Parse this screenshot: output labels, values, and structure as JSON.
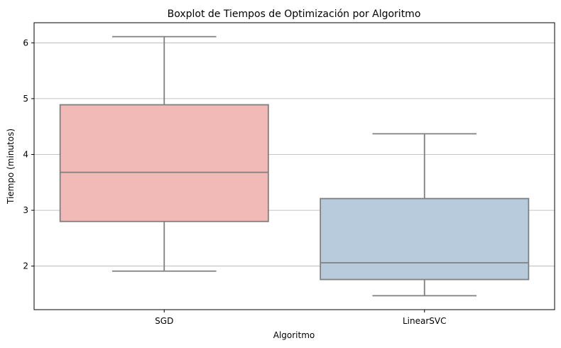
{
  "chart_data": {
    "type": "box",
    "title": "Boxplot de Tiempos de Optimización por Algoritmo",
    "xlabel": "Algoritmo",
    "ylabel": "Tiempo (minutos)",
    "categories": [
      "SGD",
      "LinearSVC"
    ],
    "yticks": [
      2,
      3,
      4,
      5,
      6
    ],
    "ylim": [
      1.22,
      6.36
    ],
    "grid": "y",
    "boxes": [
      {
        "category": "SGD",
        "whisker_low": 1.91,
        "q1": 2.8,
        "median": 3.68,
        "q3": 4.89,
        "whisker_high": 6.11,
        "color": "#f1bab7"
      },
      {
        "category": "LinearSVC",
        "whisker_low": 1.47,
        "q1": 1.76,
        "median": 2.06,
        "q3": 3.21,
        "whisker_high": 4.37,
        "color": "#b7cbdd"
      }
    ],
    "line_color": "#808080"
  }
}
